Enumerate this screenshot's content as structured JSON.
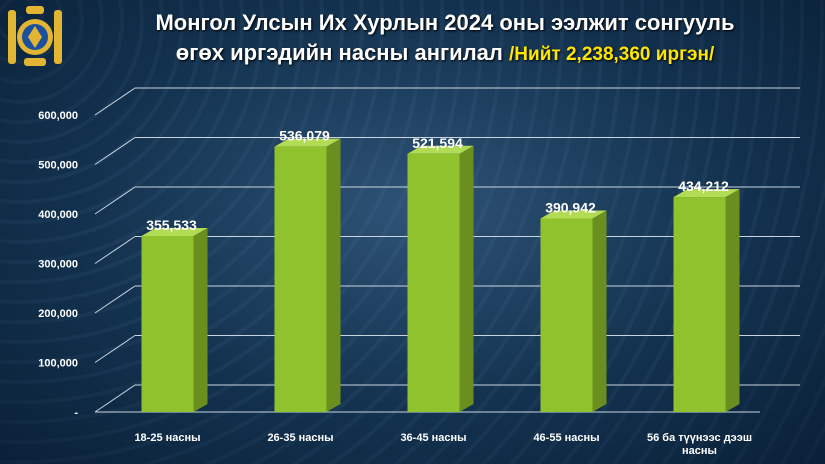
{
  "header": {
    "title_line1": "Монгол Улсын Их Хурлын 2024 оны ээлжит сонгууль",
    "title_line2": "өгөх иргэдийн насны ангилал",
    "title_total": "/Нийт 2,238,360 иргэн/"
  },
  "colors": {
    "bar_front": "#8fc22d",
    "bar_side": "#6b8f1e",
    "bar_top": "#b3dc55",
    "grid": "#c9d4df",
    "total_text": "#ffe600"
  },
  "chart_data": {
    "type": "bar",
    "categories": [
      "18-25 насны",
      "26-35 насны",
      "36-45 насны",
      "46-55 насны",
      "56 ба түүнээс дээш насны"
    ],
    "values": [
      355533,
      536079,
      521594,
      390942,
      434212
    ],
    "value_labels": [
      "355,533",
      "536,079",
      "521,594",
      "390,942",
      "434,212"
    ],
    "ytick_labels": [
      "-",
      "100,000",
      "200,000",
      "300,000",
      "400,000",
      "500,000",
      "600,000"
    ],
    "ylim": [
      0,
      600000
    ],
    "grid": true,
    "title": "Монгол Улсын Их Хурлын 2024 оны ээлжит сонгууль өгөх иргэдийн насны ангилал"
  }
}
